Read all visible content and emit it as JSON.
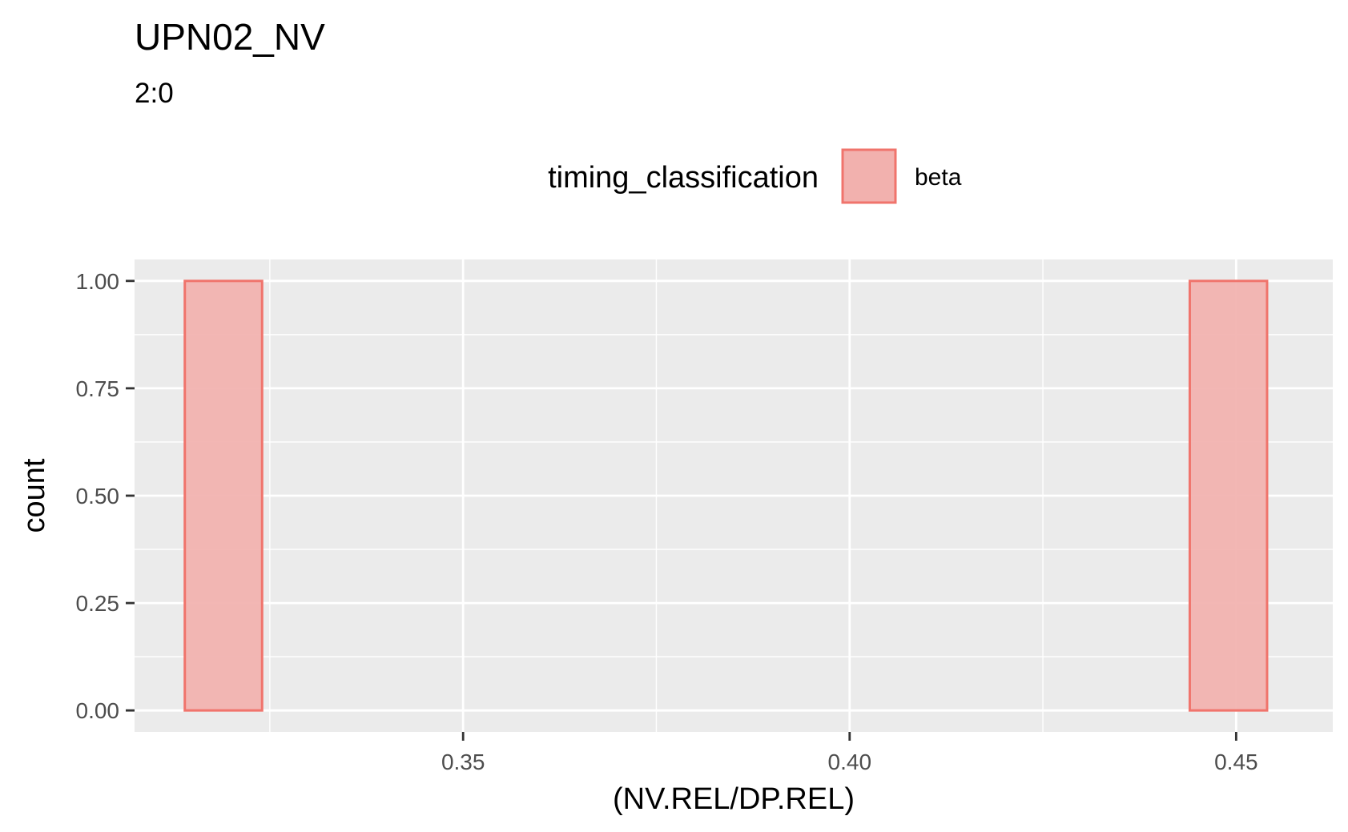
{
  "chart_data": {
    "type": "bar",
    "title": "UPN02_NV",
    "subtitle": "2:0",
    "xlabel": "(NV.REL/DP.REL)",
    "ylabel": "count",
    "xlim": [
      0.3075,
      0.4625
    ],
    "ylim": [
      -0.05,
      1.05
    ],
    "x_ticks": [
      0.35,
      0.4,
      0.45
    ],
    "x_tick_labels": [
      "0.35",
      "0.40",
      "0.45"
    ],
    "y_ticks": [
      0,
      0.25,
      0.5,
      0.75,
      1.0
    ],
    "y_tick_labels": [
      "0.00",
      "0.25",
      "0.50",
      "0.75",
      "1.00"
    ],
    "grid": true,
    "legend": {
      "title": "timing_classification",
      "position": "top",
      "entries": [
        "beta"
      ]
    },
    "bin_width": 0.01,
    "series": [
      {
        "name": "beta",
        "fill": "#f2b1ae",
        "stroke": "#f0746c",
        "bins": [
          {
            "x0": 0.314,
            "x1": 0.324,
            "count": 1
          },
          {
            "x0": 0.324,
            "x1": 0.334,
            "count": 0
          },
          {
            "x0": 0.334,
            "x1": 0.344,
            "count": 0
          },
          {
            "x0": 0.344,
            "x1": 0.354,
            "count": 0
          },
          {
            "x0": 0.354,
            "x1": 0.364,
            "count": 0
          },
          {
            "x0": 0.364,
            "x1": 0.374,
            "count": 0
          },
          {
            "x0": 0.374,
            "x1": 0.384,
            "count": 0
          },
          {
            "x0": 0.384,
            "x1": 0.394,
            "count": 0
          },
          {
            "x0": 0.394,
            "x1": 0.404,
            "count": 0
          },
          {
            "x0": 0.404,
            "x1": 0.414,
            "count": 0
          },
          {
            "x0": 0.414,
            "x1": 0.424,
            "count": 0
          },
          {
            "x0": 0.424,
            "x1": 0.434,
            "count": 0
          },
          {
            "x0": 0.434,
            "x1": 0.444,
            "count": 0
          },
          {
            "x0": 0.444,
            "x1": 0.454,
            "count": 1
          }
        ]
      }
    ],
    "colors": {
      "panel_background": "#ebebeb",
      "grid_line": "#ffffff",
      "tick": "#333333"
    }
  }
}
